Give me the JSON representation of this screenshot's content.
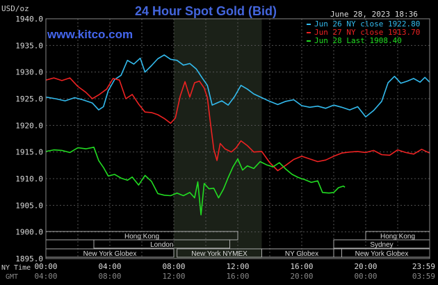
{
  "chart_data": {
    "type": "line",
    "title": "24 Hour Spot Gold (Bid)",
    "unit_label": "USD/oz",
    "website": "www.kitco.com",
    "datestamp": "June 28, 2023 18:36",
    "ylim": [
      1895,
      1940
    ],
    "y_ticks": [
      "1895.0",
      "1900.0",
      "1905.0",
      "1910.0",
      "1915.0",
      "1920.0",
      "1925.0",
      "1930.0",
      "1935.0",
      "1940.0"
    ],
    "x_ticks_ny": [
      "00:00",
      "04:00",
      "08:00",
      "12:00",
      "16:00",
      "20:00",
      "23:59"
    ],
    "x_ticks_gmt": [
      "04:00",
      "08:00",
      "12:00",
      "16:00",
      "20:00",
      "00:00",
      "03:59"
    ],
    "x_label_ny": "NY Time",
    "x_label_gmt": "GMT",
    "shaded_period": [
      8,
      13.5
    ],
    "sessions": [
      {
        "label": "Hong Kong",
        "row": 1,
        "from": 0,
        "to": 12
      },
      {
        "label": "London",
        "row": 2,
        "from": 3,
        "to": 11.5
      },
      {
        "label": "New York Globex",
        "row": 3,
        "from": 0,
        "to": 8
      },
      {
        "label": "New York NYMEX",
        "row": 3,
        "from": 8.2,
        "to": 13.5
      },
      {
        "label": "NY Globex",
        "row": 3,
        "from": 13.5,
        "to": 18.5
      },
      {
        "label": "Hong Kong",
        "row": 1,
        "from": 20,
        "to": 24
      },
      {
        "label": "Sydney",
        "row": 2,
        "from": 18,
        "to": 24
      },
      {
        "label": "New York Globex",
        "row": 3,
        "from": 18,
        "to": 24
      }
    ],
    "series": [
      {
        "name": "Jun 26 NY close 1922.80",
        "color": "#33bbee",
        "points": [
          [
            0,
            1925.3
          ],
          [
            0.6,
            1925.0
          ],
          [
            1.2,
            1924.6
          ],
          [
            1.8,
            1925.2
          ],
          [
            2.3,
            1924.8
          ],
          [
            2.9,
            1924.2
          ],
          [
            3.3,
            1922.9
          ],
          [
            3.6,
            1923.5
          ],
          [
            3.9,
            1926.5
          ],
          [
            4.3,
            1928.6
          ],
          [
            4.7,
            1929.4
          ],
          [
            5.1,
            1932.2
          ],
          [
            5.5,
            1931.5
          ],
          [
            5.9,
            1932.6
          ],
          [
            6.2,
            1930.0
          ],
          [
            6.6,
            1931.2
          ],
          [
            7.0,
            1932.5
          ],
          [
            7.4,
            1933.2
          ],
          [
            7.8,
            1932.4
          ],
          [
            8.2,
            1932.2
          ],
          [
            8.6,
            1931.3
          ],
          [
            9.0,
            1931.6
          ],
          [
            9.4,
            1930.6
          ],
          [
            9.8,
            1928.8
          ],
          [
            10.1,
            1927.5
          ],
          [
            10.4,
            1923.8
          ],
          [
            10.7,
            1924.2
          ],
          [
            11.0,
            1924.6
          ],
          [
            11.4,
            1923.8
          ],
          [
            11.8,
            1925.4
          ],
          [
            12.2,
            1927.5
          ],
          [
            12.6,
            1926.8
          ],
          [
            13.0,
            1925.9
          ],
          [
            13.5,
            1925.2
          ],
          [
            14.0,
            1924.5
          ],
          [
            14.5,
            1923.9
          ],
          [
            15.0,
            1924.5
          ],
          [
            15.5,
            1924.8
          ],
          [
            16.0,
            1923.7
          ],
          [
            16.5,
            1923.4
          ],
          [
            17.0,
            1923.6
          ],
          [
            17.5,
            1923.2
          ],
          [
            18.0,
            1923.8
          ],
          [
            18.5,
            1923.4
          ],
          [
            19.0,
            1922.9
          ],
          [
            19.5,
            1923.5
          ],
          [
            20.0,
            1921.6
          ],
          [
            20.5,
            1922.8
          ],
          [
            21.0,
            1924.5
          ],
          [
            21.4,
            1928.0
          ],
          [
            21.8,
            1929.2
          ],
          [
            22.2,
            1927.9
          ],
          [
            22.6,
            1928.3
          ],
          [
            23.0,
            1928.8
          ],
          [
            23.4,
            1928.1
          ],
          [
            23.7,
            1929.0
          ],
          [
            24.0,
            1928.1
          ]
        ]
      },
      {
        "name": "Jun 27 NY close 1913.70",
        "color": "#ee2222",
        "points": [
          [
            0,
            1928.5
          ],
          [
            0.5,
            1928.9
          ],
          [
            1.0,
            1928.4
          ],
          [
            1.5,
            1928.9
          ],
          [
            2.0,
            1927.3
          ],
          [
            2.5,
            1926.2
          ],
          [
            2.9,
            1925.0
          ],
          [
            3.3,
            1925.7
          ],
          [
            3.8,
            1926.8
          ],
          [
            4.2,
            1928.8
          ],
          [
            4.6,
            1928.5
          ],
          [
            5.0,
            1925.0
          ],
          [
            5.4,
            1925.8
          ],
          [
            5.8,
            1924.0
          ],
          [
            6.2,
            1922.5
          ],
          [
            6.6,
            1922.4
          ],
          [
            7.0,
            1922.0
          ],
          [
            7.4,
            1921.3
          ],
          [
            7.8,
            1920.4
          ],
          [
            8.1,
            1921.4
          ],
          [
            8.4,
            1925.5
          ],
          [
            8.7,
            1928.2
          ],
          [
            9.0,
            1925.3
          ],
          [
            9.3,
            1928.0
          ],
          [
            9.6,
            1928.3
          ],
          [
            9.9,
            1927.0
          ],
          [
            10.1,
            1925.2
          ],
          [
            10.3,
            1920.2
          ],
          [
            10.5,
            1915.5
          ],
          [
            10.7,
            1913.4
          ],
          [
            10.9,
            1916.6
          ],
          [
            11.2,
            1915.6
          ],
          [
            11.6,
            1915.0
          ],
          [
            11.9,
            1915.8
          ],
          [
            12.2,
            1917.1
          ],
          [
            12.6,
            1916.2
          ],
          [
            13.0,
            1915.0
          ],
          [
            13.5,
            1915.1
          ],
          [
            14.0,
            1913.0
          ],
          [
            14.5,
            1911.5
          ],
          [
            15.0,
            1912.5
          ],
          [
            15.5,
            1913.6
          ],
          [
            16.0,
            1914.2
          ],
          [
            16.5,
            1913.7
          ],
          [
            17.0,
            1913.2
          ],
          [
            17.5,
            1913.5
          ],
          [
            18.0,
            1914.2
          ],
          [
            18.5,
            1914.8
          ],
          [
            19.0,
            1915.0
          ],
          [
            19.5,
            1915.1
          ],
          [
            20.0,
            1914.9
          ],
          [
            20.5,
            1915.3
          ],
          [
            21.0,
            1914.5
          ],
          [
            21.5,
            1914.4
          ],
          [
            22.0,
            1915.4
          ],
          [
            22.5,
            1914.9
          ],
          [
            23.0,
            1914.6
          ],
          [
            23.5,
            1915.5
          ],
          [
            24.0,
            1914.8
          ]
        ]
      },
      {
        "name": "Jun 28 Last 1908.40",
        "color": "#22dd22",
        "points": [
          [
            0,
            1915.1
          ],
          [
            0.5,
            1915.4
          ],
          [
            1.0,
            1915.3
          ],
          [
            1.5,
            1914.9
          ],
          [
            2.0,
            1915.8
          ],
          [
            2.5,
            1915.6
          ],
          [
            3.0,
            1915.9
          ],
          [
            3.3,
            1913.4
          ],
          [
            3.6,
            1912.1
          ],
          [
            3.9,
            1910.5
          ],
          [
            4.3,
            1910.8
          ],
          [
            4.7,
            1910.1
          ],
          [
            5.1,
            1909.7
          ],
          [
            5.4,
            1910.3
          ],
          [
            5.8,
            1908.8
          ],
          [
            6.2,
            1910.6
          ],
          [
            6.6,
            1909.5
          ],
          [
            7.0,
            1907.2
          ],
          [
            7.4,
            1906.9
          ],
          [
            7.8,
            1906.8
          ],
          [
            8.2,
            1907.3
          ],
          [
            8.6,
            1906.8
          ],
          [
            9.0,
            1907.4
          ],
          [
            9.3,
            1906.4
          ],
          [
            9.5,
            1909.4
          ],
          [
            9.7,
            1903.2
          ],
          [
            9.9,
            1909.1
          ],
          [
            10.2,
            1908.1
          ],
          [
            10.5,
            1908.2
          ],
          [
            10.8,
            1906.4
          ],
          [
            11.1,
            1908.0
          ],
          [
            11.4,
            1910.2
          ],
          [
            11.7,
            1912.2
          ],
          [
            12.0,
            1913.7
          ],
          [
            12.3,
            1911.6
          ],
          [
            12.6,
            1912.4
          ],
          [
            13.0,
            1911.9
          ],
          [
            13.4,
            1913.2
          ],
          [
            13.8,
            1912.6
          ],
          [
            14.2,
            1912.2
          ],
          [
            14.6,
            1913.0
          ],
          [
            15.0,
            1911.8
          ],
          [
            15.4,
            1910.8
          ],
          [
            15.8,
            1910.2
          ],
          [
            16.2,
            1909.8
          ],
          [
            16.6,
            1909.3
          ],
          [
            17.0,
            1909.6
          ],
          [
            17.3,
            1907.4
          ],
          [
            17.7,
            1907.3
          ],
          [
            18.0,
            1907.4
          ],
          [
            18.3,
            1908.3
          ],
          [
            18.6,
            1908.6
          ],
          [
            18.7,
            1908.4
          ]
        ]
      }
    ]
  }
}
